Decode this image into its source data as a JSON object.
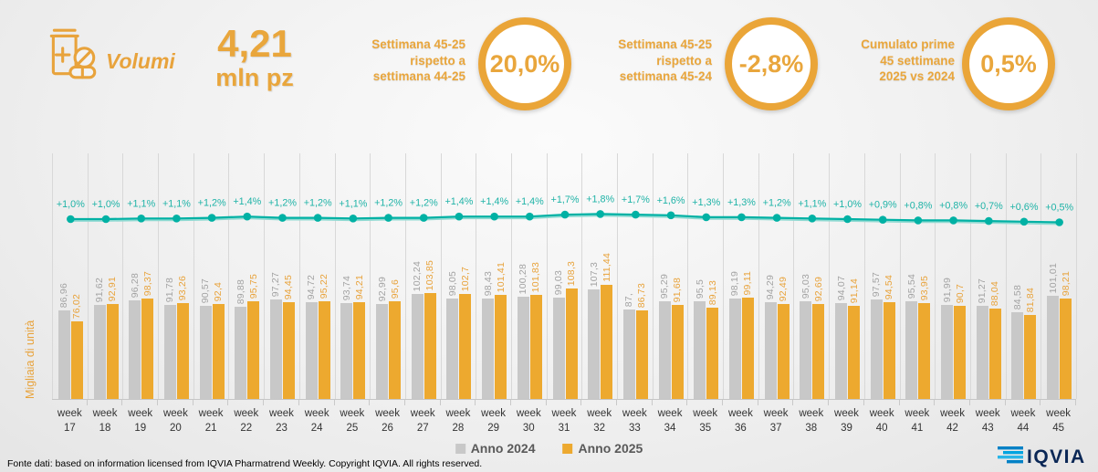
{
  "header": {
    "title": "Volumi",
    "value": "4,21",
    "unit": "mln pz",
    "kpis": [
      {
        "label": "Settimana 45-25\nrispetto a\nsettimana 44-25",
        "value": "20,0%"
      },
      {
        "label": "Settimana 45-25\nrispetto a\nsettimana 45-24",
        "value": "-2,8%"
      },
      {
        "label": "Cumulato prime\n45 settimane\n2025 vs 2024",
        "value": "0,5%"
      }
    ]
  },
  "icons": {
    "header": "pharmacy-bottle-pills-icon",
    "logo": "iqvia-logo"
  },
  "colors": {
    "accent": "#E8A33C",
    "bar_2024": "#C8C8C8",
    "bar_2025": "#EDA92F",
    "teal_line": "#00B1A4",
    "grid": "#D8D8D8"
  },
  "chart_data": {
    "type": "bar",
    "ylabel": "Migliaia di unità",
    "x_prefix": "week",
    "categories": [
      "17",
      "18",
      "19",
      "20",
      "21",
      "22",
      "23",
      "24",
      "25",
      "26",
      "27",
      "28",
      "29",
      "30",
      "31",
      "32",
      "33",
      "34",
      "35",
      "36",
      "37",
      "38",
      "39",
      "40",
      "41",
      "42",
      "43",
      "44",
      "45"
    ],
    "ylim": [
      0,
      240
    ],
    "grid": "vertical",
    "legend_position": "bottom",
    "series": [
      {
        "name": "Anno 2024",
        "color": "#C8C8C8",
        "label_color": "#A3A3A3",
        "values": [
          86.96,
          91.62,
          96.28,
          91.78,
          90.57,
          89.88,
          97.27,
          94.72,
          93.74,
          92.99,
          102.24,
          98.05,
          98.43,
          100.28,
          99.03,
          107.3,
          87.0,
          95.29,
          95.5,
          98.19,
          94.29,
          95.03,
          94.07,
          97.57,
          95.54,
          91.99,
          91.27,
          84.58,
          101.01
        ],
        "labels": [
          "86,96",
          "91,62",
          "96,28",
          "91,78",
          "90,57",
          "89,88",
          "97,27",
          "94,72",
          "93,74",
          "92,99",
          "102,24",
          "98,05",
          "98,43",
          "100,28",
          "99,03",
          "107,3",
          "87,",
          "95,29",
          "95,5",
          "98,19",
          "94,29",
          "95,03",
          "94,07",
          "97,57",
          "95,54",
          "91,99",
          "91,27",
          "84,58",
          "101,01"
        ]
      },
      {
        "name": "Anno 2025",
        "color": "#EDA92F",
        "label_color": "#E8A33C",
        "values": [
          76.02,
          92.91,
          98.37,
          93.26,
          92.4,
          95.75,
          94.45,
          95.22,
          94.21,
          95.6,
          103.85,
          102.7,
          101.41,
          101.83,
          108.3,
          111.44,
          86.73,
          91.68,
          89.13,
          99.11,
          92.49,
          92.69,
          91.14,
          94.54,
          93.95,
          90.7,
          88.04,
          81.84,
          98.21
        ],
        "labels": [
          "76,02",
          "92,91",
          "98,37",
          "93,26",
          "92,4",
          "95,75",
          "94,45",
          "95,22",
          "94,21",
          "95,6",
          "103,85",
          "102,7",
          "101,41",
          "101,83",
          "108,3",
          "111,44",
          "86,73",
          "91,68",
          "89,13",
          "99,11",
          "92,49",
          "92,69",
          "91,14",
          "94,54",
          "93,95",
          "90,7",
          "88,04",
          "81,84",
          "98,21"
        ]
      }
    ],
    "line": {
      "color": "#00B1A4",
      "label_color": "#1FB3A7",
      "values": [
        1.0,
        1.0,
        1.1,
        1.1,
        1.2,
        1.4,
        1.2,
        1.2,
        1.1,
        1.2,
        1.2,
        1.4,
        1.4,
        1.4,
        1.7,
        1.8,
        1.7,
        1.6,
        1.3,
        1.3,
        1.2,
        1.1,
        1.0,
        0.9,
        0.8,
        0.8,
        0.7,
        0.6,
        0.5
      ],
      "labels": [
        "+1,0%",
        "+1,0%",
        "+1,1%",
        "+1,1%",
        "+1,2%",
        "+1,4%",
        "+1,2%",
        "+1,2%",
        "+1,1%",
        "+1,2%",
        "+1,2%",
        "+1,4%",
        "+1,4%",
        "+1,4%",
        "+1,7%",
        "+1,8%",
        "+1,7%",
        "+1,6%",
        "+1,3%",
        "+1,3%",
        "+1,2%",
        "+1,1%",
        "+1,0%",
        "+0,9%",
        "+0,8%",
        "+0,8%",
        "+0,7%",
        "+0,6%",
        "+0,5%"
      ]
    }
  },
  "footer": {
    "source": "Fonte dati: based on information licensed from IQVIA Pharmatrend Weekly. Copyright IQVIA. All rights reserved.",
    "logo_text": "IQVIA"
  }
}
